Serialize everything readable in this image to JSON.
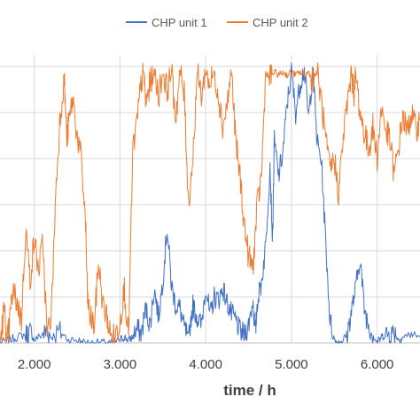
{
  "chart_data": {
    "type": "line",
    "xlabel": "time / h",
    "ylabel": "",
    "x_ticks": [
      "2.000",
      "3.000",
      "4.000",
      "5.000",
      "6.000"
    ],
    "x_tick_values": [
      2000,
      3000,
      4000,
      5000,
      6000
    ],
    "xlim": [
      1600,
      6500
    ],
    "ylim": [
      0,
      100
    ],
    "y_grid_values": [
      0,
      16,
      32,
      48,
      64,
      80,
      96
    ],
    "grid": true,
    "legend_position": "top-center",
    "series": [
      {
        "name": "CHP unit 1",
        "color": "#4472C4",
        "points": [
          [
            1600,
            0
          ],
          [
            1700,
            1
          ],
          [
            1800,
            2
          ],
          [
            1900,
            3
          ],
          [
            1950,
            4
          ],
          [
            2000,
            1
          ],
          [
            2100,
            3
          ],
          [
            2150,
            4
          ],
          [
            2200,
            2
          ],
          [
            2300,
            4
          ],
          [
            2400,
            1
          ],
          [
            2500,
            1
          ],
          [
            2600,
            0
          ],
          [
            2700,
            0
          ],
          [
            2800,
            0
          ],
          [
            2900,
            0
          ],
          [
            3000,
            1
          ],
          [
            3050,
            2
          ],
          [
            3100,
            1
          ],
          [
            3150,
            2
          ],
          [
            3200,
            5
          ],
          [
            3250,
            3
          ],
          [
            3300,
            12
          ],
          [
            3350,
            6
          ],
          [
            3400,
            19
          ],
          [
            3450,
            9
          ],
          [
            3500,
            22
          ],
          [
            3550,
            40
          ],
          [
            3600,
            20
          ],
          [
            3650,
            13
          ],
          [
            3700,
            12
          ],
          [
            3750,
            5
          ],
          [
            3800,
            2
          ],
          [
            3850,
            13
          ],
          [
            3900,
            9
          ],
          [
            3950,
            6
          ],
          [
            4000,
            20
          ],
          [
            4050,
            9
          ],
          [
            4100,
            16
          ],
          [
            4150,
            15
          ],
          [
            4200,
            19
          ],
          [
            4250,
            14
          ],
          [
            4300,
            10
          ],
          [
            4350,
            8
          ],
          [
            4400,
            4
          ],
          [
            4450,
            3
          ],
          [
            4500,
            6
          ],
          [
            4550,
            15
          ],
          [
            4580,
            3
          ],
          [
            4600,
            14
          ],
          [
            4650,
            21
          ],
          [
            4700,
            34
          ],
          [
            4750,
            62
          ],
          [
            4780,
            35
          ],
          [
            4800,
            70
          ],
          [
            4850,
            58
          ],
          [
            4900,
            66
          ],
          [
            4950,
            83
          ],
          [
            5000,
            94
          ],
          [
            5050,
            80
          ],
          [
            5100,
            90
          ],
          [
            5150,
            95
          ],
          [
            5200,
            78
          ],
          [
            5250,
            95
          ],
          [
            5300,
            70
          ],
          [
            5350,
            63
          ],
          [
            5400,
            35
          ],
          [
            5450,
            8
          ],
          [
            5500,
            1
          ],
          [
            5550,
            0
          ],
          [
            5600,
            1
          ],
          [
            5650,
            3
          ],
          [
            5700,
            11
          ],
          [
            5750,
            19
          ],
          [
            5800,
            30
          ],
          [
            5850,
            12
          ],
          [
            5900,
            6
          ],
          [
            5950,
            3
          ],
          [
            6000,
            0
          ],
          [
            6050,
            2
          ],
          [
            6100,
            3
          ],
          [
            6150,
            3
          ],
          [
            6200,
            4
          ],
          [
            6250,
            1
          ],
          [
            6300,
            2
          ],
          [
            6400,
            3
          ],
          [
            6500,
            2
          ]
        ]
      },
      {
        "name": "CHP unit 2",
        "color": "#ED7D31",
        "points": [
          [
            1600,
            0
          ],
          [
            1650,
            12
          ],
          [
            1680,
            0
          ],
          [
            1700,
            4
          ],
          [
            1750,
            18
          ],
          [
            1800,
            14
          ],
          [
            1850,
            8
          ],
          [
            1900,
            40
          ],
          [
            1950,
            22
          ],
          [
            2000,
            36
          ],
          [
            2050,
            25
          ],
          [
            2100,
            35
          ],
          [
            2150,
            2
          ],
          [
            2200,
            11
          ],
          [
            2250,
            52
          ],
          [
            2300,
            78
          ],
          [
            2350,
            92
          ],
          [
            2380,
            70
          ],
          [
            2400,
            76
          ],
          [
            2450,
            85
          ],
          [
            2500,
            72
          ],
          [
            2550,
            63
          ],
          [
            2600,
            41
          ],
          [
            2620,
            16
          ],
          [
            2650,
            9
          ],
          [
            2700,
            6
          ],
          [
            2750,
            28
          ],
          [
            2800,
            13
          ],
          [
            2850,
            9
          ],
          [
            2900,
            1
          ],
          [
            2950,
            3
          ],
          [
            3000,
            8
          ],
          [
            3050,
            19
          ],
          [
            3100,
            2
          ],
          [
            3150,
            67
          ],
          [
            3200,
            77
          ],
          [
            3250,
            91
          ],
          [
            3280,
            94
          ],
          [
            3300,
            83
          ],
          [
            3350,
            90
          ],
          [
            3400,
            94
          ],
          [
            3450,
            86
          ],
          [
            3500,
            94
          ],
          [
            3550,
            88
          ],
          [
            3600,
            94
          ],
          [
            3650,
            78
          ],
          [
            3700,
            94
          ],
          [
            3750,
            86
          ],
          [
            3800,
            48
          ],
          [
            3850,
            64
          ],
          [
            3900,
            94
          ],
          [
            3950,
            86
          ],
          [
            4000,
            94
          ],
          [
            4050,
            90
          ],
          [
            4100,
            94
          ],
          [
            4150,
            86
          ],
          [
            4200,
            75
          ],
          [
            4250,
            83
          ],
          [
            4300,
            94
          ],
          [
            4350,
            70
          ],
          [
            4400,
            58
          ],
          [
            4450,
            41
          ],
          [
            4500,
            30
          ],
          [
            4550,
            26
          ],
          [
            4600,
            47
          ],
          [
            4650,
            58
          ],
          [
            4700,
            94
          ],
          [
            4750,
            92
          ],
          [
            4800,
            94
          ],
          [
            4850,
            93
          ],
          [
            4900,
            94
          ],
          [
            4950,
            93
          ],
          [
            5000,
            94
          ],
          [
            5050,
            93
          ],
          [
            5100,
            94
          ],
          [
            5150,
            93
          ],
          [
            5200,
            94
          ],
          [
            5250,
            92
          ],
          [
            5300,
            94
          ],
          [
            5350,
            84
          ],
          [
            5400,
            70
          ],
          [
            5450,
            60
          ],
          [
            5500,
            64
          ],
          [
            5550,
            52
          ],
          [
            5600,
            70
          ],
          [
            5650,
            83
          ],
          [
            5700,
            94
          ],
          [
            5730,
            87
          ],
          [
            5750,
            94
          ],
          [
            5800,
            80
          ],
          [
            5850,
            73
          ],
          [
            5900,
            67
          ],
          [
            5950,
            75
          ],
          [
            6000,
            64
          ],
          [
            6050,
            82
          ],
          [
            6100,
            74
          ],
          [
            6150,
            70
          ],
          [
            6200,
            58
          ],
          [
            6250,
            68
          ],
          [
            6300,
            79
          ],
          [
            6350,
            73
          ],
          [
            6400,
            80
          ],
          [
            6450,
            74
          ],
          [
            6500,
            78
          ]
        ]
      }
    ]
  }
}
